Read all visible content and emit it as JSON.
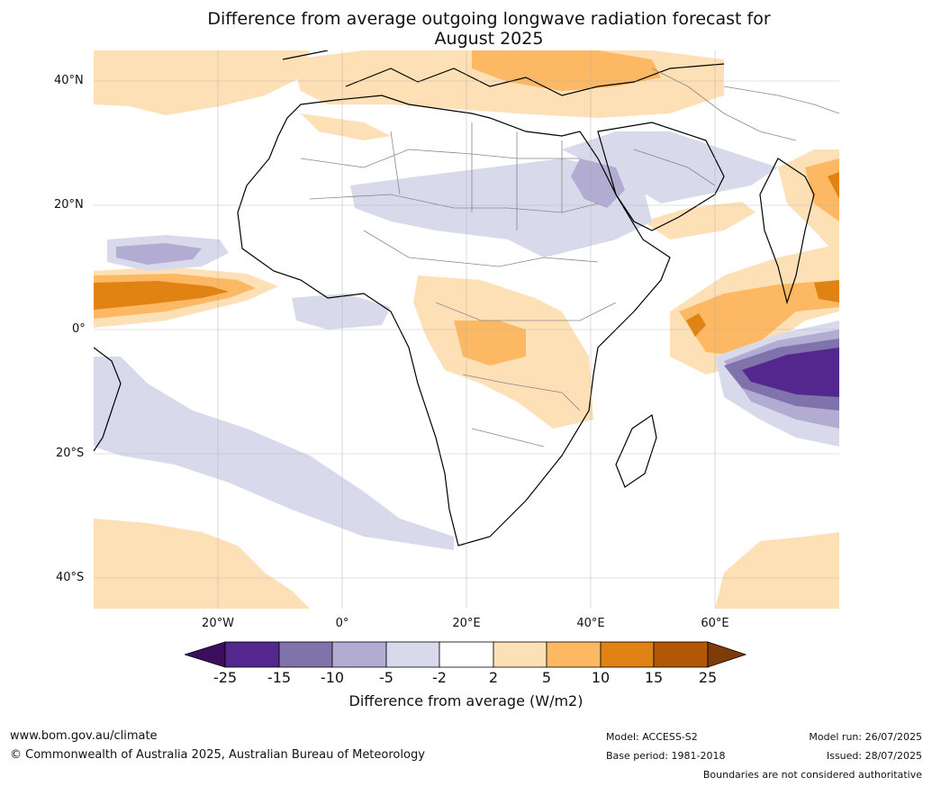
{
  "title": {
    "line1": "Difference from average outgoing longwave radiation forecast for",
    "line2": "August 2025"
  },
  "map": {
    "lat_labels": [
      "40°N",
      "20°N",
      "0°",
      "20°S",
      "40°S"
    ],
    "lon_labels": [
      "20°W",
      "0°",
      "20°E",
      "40°E",
      "60°E"
    ],
    "colors": {
      "deep_purple": "#3b0f5e",
      "purple_dark": "#54278f",
      "purple_mid": "#8073ac",
      "purple_light": "#b2abd2",
      "purple_pale": "#d8daeb",
      "neutral": "#ffffff",
      "orange_pale": "#fee0b6",
      "orange_light": "#fdb863",
      "orange_mid": "#e08214",
      "orange_dark": "#b35806",
      "deep_orange": "#7f3b08"
    }
  },
  "colorbar": {
    "ticks": [
      "-25",
      "-15",
      "-10",
      "-5",
      "-2",
      "2",
      "5",
      "10",
      "15",
      "25"
    ],
    "label": "Difference from average (W/m2)"
  },
  "footer": {
    "url": "www.bom.gov.au/climate",
    "copyright": "© Commonwealth of Australia 2025, Australian Bureau of Meteorology",
    "model": "Model: ACCESS-S2",
    "base_period": "Base period: 1981-2018",
    "model_run": "Model run: 26/07/2025",
    "issued": "Issued: 28/07/2025",
    "disclaimer": "Boundaries are not considered authoritative"
  }
}
